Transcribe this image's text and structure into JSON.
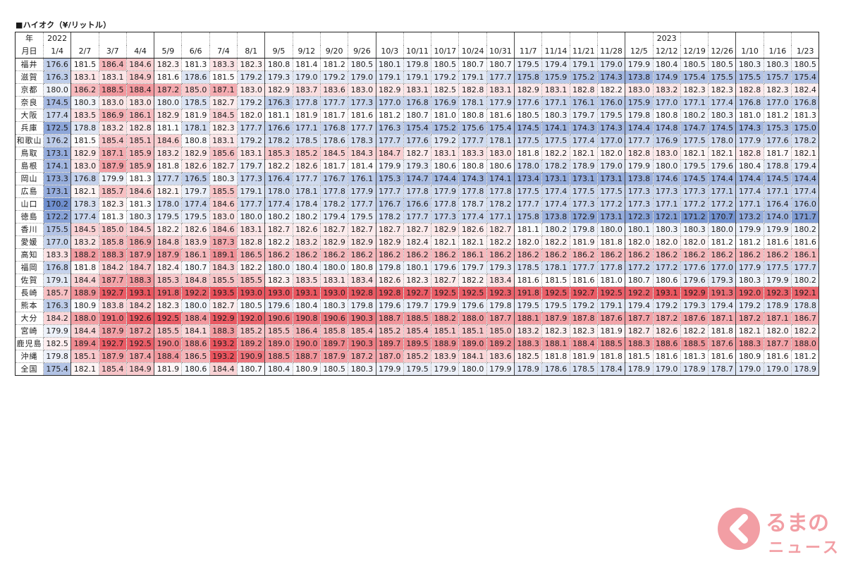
{
  "title": "■ハイオク（¥/リットル）",
  "header": {
    "corner_top": "年",
    "corner_bottom": "月日",
    "year_labels": {
      "0": "2022",
      "22": "2023"
    },
    "dates": [
      "1/4",
      "2/7",
      "3/7",
      "4/4",
      "5/9",
      "6/6",
      "7/4",
      "8/1",
      "9/5",
      "9/12",
      "9/20",
      "9/26",
      "10/3",
      "10/11",
      "10/17",
      "10/24",
      "10/31",
      "11/7",
      "11/14",
      "11/21",
      "11/28",
      "12/5",
      "12/12",
      "12/19",
      "12/26",
      "1/10",
      "1/16",
      "1/23"
    ]
  },
  "rows": [
    {
      "pref": "福井",
      "values": [
        176.6,
        181.5,
        186.4,
        184.6,
        182.3,
        181.3,
        183.3,
        182.3,
        180.8,
        181.4,
        181.2,
        180.5,
        180.1,
        179.8,
        180.5,
        180.7,
        180.7,
        179.5,
        179.4,
        179.1,
        179.0,
        179.9,
        180.4,
        180.5,
        180.5,
        180.3,
        180.3,
        180.5
      ]
    },
    {
      "pref": "滋賀",
      "values": [
        176.3,
        183.1,
        183.1,
        184.9,
        181.6,
        178.6,
        181.5,
        179.2,
        179.3,
        179.0,
        179.2,
        179.0,
        179.1,
        179.1,
        179.2,
        179.1,
        177.7,
        175.8,
        175.9,
        175.2,
        174.3,
        173.8,
        174.9,
        175.4,
        175.5,
        175.5,
        175.7,
        175.4
      ]
    },
    {
      "pref": "京都",
      "values": [
        180.0,
        186.2,
        188.5,
        188.4,
        187.2,
        185.0,
        187.1,
        183.0,
        182.9,
        183.7,
        183.6,
        183.0,
        182.9,
        183.1,
        182.5,
        182.8,
        183.1,
        182.9,
        183.1,
        182.8,
        182.2,
        183.0,
        183.2,
        182.3,
        182.3,
        182.8,
        182.3,
        182.4
      ]
    },
    {
      "pref": "奈良",
      "values": [
        174.5,
        180.3,
        183.0,
        183.0,
        180.0,
        178.5,
        182.7,
        179.2,
        176.3,
        177.8,
        177.7,
        177.3,
        177.0,
        176.8,
        176.9,
        178.1,
        177.9,
        177.6,
        177.1,
        176.1,
        176.0,
        175.9,
        177.0,
        177.1,
        177.4,
        176.8,
        177.0,
        176.8
      ]
    },
    {
      "pref": "大阪",
      "values": [
        177.4,
        183.5,
        186.9,
        186.1,
        182.9,
        181.9,
        184.5,
        182.0,
        181.1,
        181.9,
        181.7,
        181.6,
        181.2,
        180.7,
        181.0,
        180.8,
        181.6,
        180.5,
        180.3,
        179.7,
        179.5,
        179.8,
        180.8,
        180.2,
        180.3,
        181.0,
        181.2,
        181.3
      ]
    },
    {
      "pref": "兵庫",
      "values": [
        172.5,
        178.8,
        183.2,
        182.8,
        181.1,
        178.1,
        182.3,
        177.7,
        176.6,
        177.1,
        176.8,
        177.7,
        176.3,
        175.4,
        175.2,
        175.6,
        175.4,
        174.5,
        174.1,
        174.3,
        174.3,
        174.4,
        174.8,
        174.7,
        174.5,
        174.3,
        175.3,
        175.0
      ]
    },
    {
      "pref": "和歌山",
      "values": [
        176.2,
        181.5,
        185.4,
        185.1,
        184.6,
        180.8,
        183.1,
        179.2,
        178.2,
        178.5,
        178.6,
        178.3,
        177.7,
        177.6,
        179.2,
        177.7,
        178.1,
        177.5,
        177.5,
        177.4,
        177.0,
        177.7,
        176.9,
        177.5,
        178.0,
        177.9,
        177.6,
        178.2
      ]
    },
    {
      "pref": "鳥取",
      "values": [
        173.1,
        182.9,
        187.1,
        185.9,
        183.2,
        182.9,
        185.6,
        183.1,
        185.3,
        185.2,
        184.5,
        184.3,
        184.7,
        182.7,
        183.1,
        183.3,
        183.0,
        181.8,
        182.2,
        182.1,
        182.0,
        182.8,
        183.0,
        182.1,
        182.1,
        182.8,
        181.7,
        182.1
      ]
    },
    {
      "pref": "島根",
      "values": [
        174.1,
        183.0,
        187.9,
        185.9,
        181.8,
        182.6,
        182.7,
        179.7,
        182.2,
        182.6,
        181.7,
        181.4,
        179.9,
        179.3,
        180.6,
        180.8,
        180.6,
        178.0,
        178.2,
        178.9,
        179.0,
        179.9,
        180.0,
        179.5,
        179.6,
        180.4,
        178.8,
        179.4
      ]
    },
    {
      "pref": "岡山",
      "values": [
        173.3,
        176.8,
        179.9,
        181.3,
        177.7,
        176.5,
        180.3,
        177.3,
        176.4,
        177.7,
        176.7,
        176.1,
        175.3,
        174.7,
        174.4,
        174.3,
        174.1,
        173.4,
        173.1,
        173.1,
        173.1,
        173.8,
        174.6,
        174.5,
        174.4,
        174.4,
        174.5,
        174.4
      ]
    },
    {
      "pref": "広島",
      "values": [
        173.1,
        182.1,
        185.7,
        184.6,
        182.1,
        179.7,
        185.5,
        179.1,
        178.0,
        178.1,
        177.8,
        177.9,
        177.7,
        177.8,
        177.9,
        177.8,
        177.8,
        177.5,
        177.4,
        177.5,
        177.5,
        177.3,
        177.3,
        177.3,
        177.1,
        177.4,
        177.1,
        177.4
      ]
    },
    {
      "pref": "山口",
      "values": [
        170.2,
        178.3,
        182.3,
        181.3,
        178.0,
        177.4,
        184.6,
        177.7,
        177.4,
        178.4,
        178.2,
        177.7,
        176.7,
        176.6,
        177.8,
        178.7,
        178.2,
        177.7,
        177.4,
        177.3,
        177.2,
        177.3,
        177.1,
        177.2,
        177.2,
        177.1,
        176.4,
        176.0
      ]
    },
    {
      "pref": "徳島",
      "values": [
        172.2,
        177.4,
        181.3,
        180.3,
        179.5,
        179.5,
        183.0,
        180.0,
        180.2,
        180.2,
        179.4,
        179.5,
        178.2,
        177.7,
        177.3,
        177.4,
        177.1,
        175.8,
        173.8,
        172.9,
        173.1,
        172.3,
        172.1,
        171.2,
        170.7,
        173.2,
        174.0,
        171.7
      ]
    },
    {
      "pref": "香川",
      "values": [
        175.5,
        184.5,
        185.0,
        184.5,
        182.2,
        182.6,
        184.6,
        183.1,
        182.7,
        182.6,
        182.7,
        182.7,
        182.7,
        182.7,
        182.9,
        182.6,
        182.7,
        181.1,
        180.2,
        179.8,
        180.0,
        180.1,
        180.3,
        180.3,
        180.0,
        179.9,
        179.9,
        180.2
      ]
    },
    {
      "pref": "愛媛",
      "values": [
        177.0,
        183.2,
        185.8,
        186.9,
        184.8,
        183.9,
        187.3,
        182.8,
        182.2,
        183.2,
        182.9,
        182.9,
        182.9,
        182.4,
        182.1,
        182.1,
        182.2,
        182.0,
        182.2,
        181.9,
        181.8,
        182.0,
        182.0,
        182.0,
        181.2,
        181.2,
        181.6,
        181.6
      ]
    },
    {
      "pref": "高知",
      "values": [
        183.3,
        188.2,
        188.3,
        187.9,
        187.9,
        186.1,
        189.1,
        186.5,
        186.2,
        186.2,
        186.2,
        186.2,
        186.2,
        186.2,
        186.2,
        186.1,
        186.2,
        186.2,
        186.2,
        186.2,
        186.2,
        186.2,
        186.2,
        186.2,
        186.2,
        186.2,
        186.2,
        186.1
      ]
    },
    {
      "pref": "福岡",
      "values": [
        176.8,
        181.8,
        184.2,
        184.7,
        182.4,
        180.7,
        184.3,
        182.2,
        180.0,
        180.4,
        180.0,
        180.8,
        179.8,
        180.1,
        179.6,
        179.7,
        179.3,
        178.5,
        178.1,
        177.7,
        177.8,
        177.2,
        177.2,
        177.6,
        177.0,
        177.9,
        177.5,
        177.7
      ]
    },
    {
      "pref": "佐賀",
      "values": [
        179.1,
        184.4,
        187.7,
        188.3,
        185.3,
        184.8,
        185.5,
        185.5,
        182.3,
        183.5,
        183.1,
        183.4,
        182.6,
        182.3,
        182.7,
        182.2,
        183.4,
        181.6,
        181.5,
        181.6,
        181.0,
        180.7,
        180.6,
        179.6,
        179.3,
        180.3,
        179.9,
        180.2
      ]
    },
    {
      "pref": "長崎",
      "values": [
        185.7,
        188.9,
        192.7,
        193.1,
        191.8,
        192.2,
        193.5,
        193.0,
        193.0,
        193.1,
        193.0,
        192.8,
        192.8,
        192.7,
        192.5,
        192.5,
        192.3,
        191.8,
        192.5,
        192.7,
        192.5,
        192.2,
        193.1,
        192.9,
        191.3,
        192.0,
        192.3,
        192.1
      ]
    },
    {
      "pref": "熊本",
      "values": [
        176.3,
        180.9,
        183.8,
        184.2,
        182.3,
        180.0,
        182.7,
        180.5,
        179.6,
        180.4,
        180.3,
        179.8,
        179.6,
        179.7,
        179.9,
        179.6,
        179.8,
        179.5,
        179.5,
        179.2,
        179.1,
        179.4,
        179.2,
        179.3,
        179.4,
        179.2,
        178.9,
        178.8
      ]
    },
    {
      "pref": "大分",
      "values": [
        184.2,
        188.0,
        191.0,
        192.6,
        192.5,
        188.4,
        192.9,
        192.0,
        190.6,
        190.8,
        190.6,
        190.3,
        188.7,
        188.5,
        188.2,
        188.0,
        187.7,
        188.1,
        187.9,
        187.8,
        187.6,
        187.7,
        187.2,
        187.6,
        187.1,
        187.2,
        187.1,
        186.7
      ]
    },
    {
      "pref": "宮崎",
      "values": [
        179.9,
        184.4,
        187.9,
        187.2,
        185.5,
        184.1,
        188.3,
        185.2,
        185.5,
        186.4,
        185.8,
        185.4,
        185.2,
        185.4,
        185.1,
        185.1,
        185.0,
        183.2,
        182.3,
        182.3,
        181.9,
        182.7,
        182.6,
        182.2,
        181.8,
        182.1,
        182.0,
        182.2
      ]
    },
    {
      "pref": "鹿児島",
      "values": [
        182.5,
        189.4,
        192.7,
        192.5,
        190.0,
        188.6,
        193.2,
        189.2,
        189.0,
        190.0,
        189.7,
        190.3,
        189.7,
        189.5,
        188.9,
        189.0,
        189.2,
        188.3,
        188.1,
        188.4,
        188.5,
        188.3,
        188.6,
        188.5,
        187.6,
        188.3,
        187.7,
        188.0
      ]
    },
    {
      "pref": "沖縄",
      "values": [
        179.8,
        185.1,
        187.9,
        187.4,
        188.4,
        186.5,
        193.2,
        190.9,
        188.5,
        188.7,
        187.9,
        187.2,
        187.0,
        185.2,
        183.9,
        184.1,
        183.6,
        182.5,
        181.8,
        181.9,
        181.8,
        181.5,
        181.6,
        181.3,
        181.6,
        180.9,
        181.6,
        181.2
      ]
    },
    {
      "pref": "全国",
      "values": [
        175.4,
        182.1,
        185.4,
        184.9,
        181.9,
        180.6,
        184.4,
        180.7,
        180.4,
        180.9,
        180.5,
        180.3,
        179.9,
        179.5,
        179.9,
        180.0,
        179.9,
        178.9,
        178.6,
        178.5,
        178.4,
        178.9,
        179.0,
        178.9,
        178.7,
        179.0,
        179.0,
        178.9
      ]
    }
  ],
  "color_scale": {
    "low": "#6f8fcf",
    "mid": "#ffffff",
    "high": "#e8505a"
  },
  "logo": {
    "text_top": "るまの",
    "text_bottom": "ニュース",
    "color": "#e8505a"
  }
}
